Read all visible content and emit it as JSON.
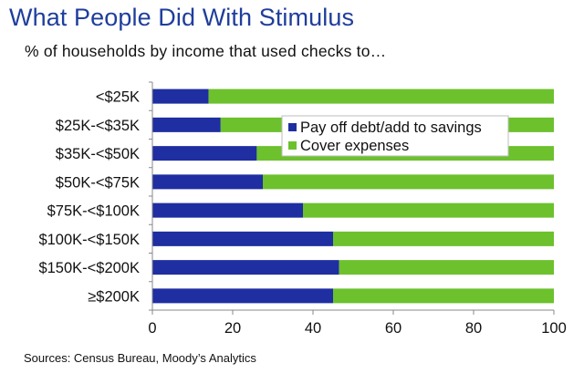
{
  "title": "What People Did With Stimulus",
  "subtitle": "% of households by income that used checks to…",
  "source": "Sources: Census Bureau, Moody’s Analytics",
  "colors": {
    "title": "#1f3e9c",
    "debt_savings": "#1f2ea0",
    "expenses": "#6cc12d"
  },
  "chart_data": {
    "type": "bar",
    "orientation": "horizontal",
    "stacked": true,
    "categories": [
      "<$25K",
      "$25K-<$35K",
      "$35K-<$50K",
      "$50K-<$75K",
      "$75K-<$100K",
      "$100K-<$150K",
      "$150K-<$200K",
      "≥$200K"
    ],
    "series": [
      {
        "name": "Pay off debt/add to savings",
        "values": [
          14,
          17,
          26,
          27.5,
          37.5,
          45,
          46.5,
          45
        ]
      },
      {
        "name": "Cover expenses",
        "values": [
          86,
          83,
          74,
          72.5,
          62.5,
          55,
          53.5,
          55
        ]
      }
    ],
    "xlim": [
      0,
      100
    ],
    "xticks": [
      0,
      20,
      40,
      60,
      80,
      100
    ],
    "grid": false,
    "legend_position": "top-center"
  }
}
